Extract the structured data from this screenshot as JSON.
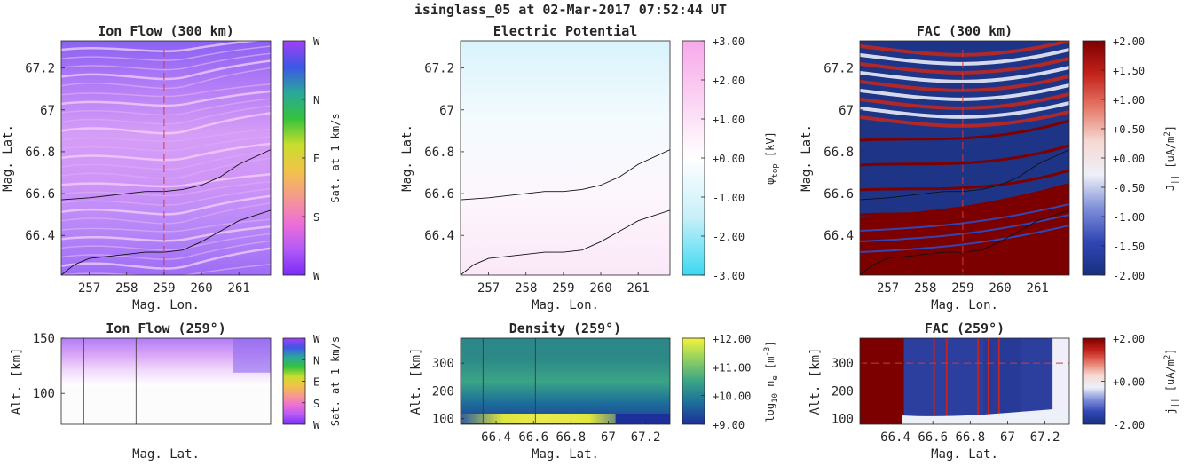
{
  "figure_title": "isinglass_05 at 02-Mar-2017 07:52:44 UT",
  "colors": {
    "axis": "#262626",
    "cut_line": "#d23a3a",
    "contour": "#111111"
  },
  "chart_data": [
    {
      "id": "ion-flow-300",
      "type": "heatmap",
      "title": "Ion Flow (300 km)",
      "xlabel": "Mag. Lon.",
      "ylabel": "Mag. Lat.",
      "xlim": [
        256.25,
        261.85
      ],
      "ylim": [
        66.21,
        67.33
      ],
      "xticks": [
        257,
        258,
        259,
        260,
        261
      ],
      "yticks": [
        66.4,
        66.6,
        66.8,
        67,
        67.2
      ],
      "ytick_labels": [
        "66.4",
        "66.6",
        "66.8",
        "67",
        "67.2"
      ],
      "cut_longitude": 259,
      "contours": [
        {
          "x": [
            256.25,
            257,
            258,
            258.5,
            259,
            259.5,
            260,
            260.5,
            261,
            261.85
          ],
          "y": [
            66.57,
            66.58,
            66.6,
            66.61,
            66.61,
            66.62,
            66.64,
            66.68,
            66.74,
            66.81
          ]
        },
        {
          "x": [
            256.25,
            256.6,
            257,
            257.5,
            258,
            258.5,
            259,
            259.5,
            260,
            260.5,
            261,
            261.85
          ],
          "y": [
            66.21,
            66.26,
            66.29,
            66.3,
            66.31,
            66.32,
            66.32,
            66.33,
            66.37,
            66.42,
            66.47,
            66.52
          ]
        }
      ],
      "colorbar": {
        "label": "Sat. at 1 km/s",
        "ticks": [
          "W",
          "N",
          "E",
          "S",
          "W"
        ],
        "stops": [
          "#a23ff7",
          "#3d57e6",
          "#2aa89a",
          "#35c23d",
          "#c8de2e",
          "#f2c24a",
          "#f59a8e",
          "#ee6fd6",
          "#b35af7",
          "#7a2cf5"
        ]
      }
    },
    {
      "id": "electric-potential",
      "type": "heatmap",
      "title": "Electric Potential",
      "xlabel": "Mag. Lon.",
      "ylabel": "Mag. Lat.",
      "xlim": [
        256.25,
        261.85
      ],
      "ylim": [
        66.21,
        67.33
      ],
      "xticks": [
        257,
        258,
        259,
        260,
        261
      ],
      "yticks": [
        66.4,
        66.6,
        66.8,
        67,
        67.2
      ],
      "ytick_labels": [
        "66.4",
        "66.6",
        "66.8",
        "67",
        "67.2"
      ],
      "contours": [
        {
          "x": [
            256.25,
            257,
            258,
            258.5,
            259,
            259.5,
            260,
            260.5,
            261,
            261.85
          ],
          "y": [
            66.57,
            66.58,
            66.6,
            66.61,
            66.61,
            66.62,
            66.64,
            66.68,
            66.74,
            66.81
          ]
        },
        {
          "x": [
            256.25,
            256.6,
            257,
            257.5,
            258,
            258.5,
            259,
            259.5,
            260,
            260.5,
            261,
            261.85
          ],
          "y": [
            66.21,
            66.26,
            66.29,
            66.3,
            66.31,
            66.32,
            66.32,
            66.33,
            66.37,
            66.42,
            66.47,
            66.52
          ]
        }
      ],
      "colorbar": {
        "label": "φ_top [kV]",
        "label_main": "φ",
        "label_sub": "top",
        "label_unit": " [kV]",
        "ticks": [
          "+3.00",
          "+2.00",
          "+1.00",
          "+0.00",
          "-1.00",
          "-2.00",
          "-3.00"
        ],
        "stops": [
          "#f7a8ea",
          "#fbd3f3",
          "#ffffff",
          "#c9f0f8",
          "#3cd8f0"
        ]
      }
    },
    {
      "id": "fac-300",
      "type": "heatmap",
      "title": "FAC (300 km)",
      "xlabel": "Mag. Lon.",
      "ylabel": "Mag. Lat.",
      "xlim": [
        256.25,
        261.85
      ],
      "ylim": [
        66.21,
        67.33
      ],
      "xticks": [
        257,
        258,
        259,
        260,
        261
      ],
      "yticks": [
        66.4,
        66.6,
        66.8,
        67,
        67.2
      ],
      "ytick_labels": [
        "66.4",
        "66.6",
        "66.8",
        "67",
        "67.2"
      ],
      "cut_longitude": 259,
      "contours": [
        {
          "x": [
            256.25,
            257,
            258,
            258.5,
            259,
            259.5,
            260,
            260.5,
            261,
            261.85
          ],
          "y": [
            66.57,
            66.58,
            66.6,
            66.61,
            66.61,
            66.62,
            66.64,
            66.68,
            66.74,
            66.81
          ]
        },
        {
          "x": [
            256.25,
            256.6,
            257,
            257.5,
            258,
            258.5,
            259,
            259.5,
            260,
            260.5,
            261,
            261.85
          ],
          "y": [
            66.21,
            66.26,
            66.29,
            66.3,
            66.31,
            66.32,
            66.32,
            66.33,
            66.37,
            66.42,
            66.47,
            66.52
          ]
        }
      ],
      "colorbar": {
        "label": "J_|| [uA/m²]",
        "label_main": "J",
        "label_sub": "||",
        "label_unit": " [uA/m",
        "label_sup": "2",
        "label_end": "]",
        "ticks": [
          "+2.00",
          "+1.50",
          "+1.00",
          "+0.50",
          "+0.00",
          "-0.50",
          "-1.00",
          "-1.50",
          "-2.00"
        ],
        "stops": [
          "#7d0000",
          "#c4221a",
          "#e67a6a",
          "#f6d8d2",
          "#eef0f8",
          "#7f8fd9",
          "#3146b4",
          "#18307f"
        ]
      }
    },
    {
      "id": "ion-flow-259",
      "type": "heatmap",
      "title": "Ion Flow (259°)",
      "xlabel": "Mag. Lat.",
      "ylabel": "Alt. [km]",
      "xlim": [
        66.21,
        67.33
      ],
      "ylim": [
        72,
        150
      ],
      "xticks": [],
      "xtick_labels": [],
      "yticks": [
        100,
        150
      ],
      "ytick_labels": [
        "100",
        "150"
      ],
      "vlines": [
        66.33,
        66.61
      ],
      "colorbar": {
        "label": "Sat. at 1 km/s",
        "ticks": [
          "W",
          "N",
          "E",
          "S",
          "W"
        ],
        "stops": [
          "#a23ff7",
          "#3d57e6",
          "#2aa89a",
          "#35c23d",
          "#c8de2e",
          "#f2c24a",
          "#f59a8e",
          "#ee6fd6",
          "#b35af7",
          "#7a2cf5"
        ]
      }
    },
    {
      "id": "density-259",
      "type": "heatmap",
      "title": "Density (259°)",
      "xlabel": "Mag. Lat.",
      "ylabel": "Alt. [km]",
      "xlim": [
        66.21,
        67.33
      ],
      "ylim": [
        80,
        390
      ],
      "xticks": [
        66.4,
        66.6,
        66.8,
        67,
        67.2
      ],
      "xtick_labels": [
        "66.4",
        "66.6",
        "66.8",
        "67",
        "67.2"
      ],
      "yticks": [
        100,
        200,
        300
      ],
      "ytick_labels": [
        "100",
        "200",
        "300"
      ],
      "vlines": [
        66.33,
        66.61
      ],
      "colorbar": {
        "label": "log10 ne [m^-3]",
        "label_main": "log",
        "label_sub": "10",
        "label_mid": " n",
        "label_sub2": "e",
        "label_unit": " [m",
        "label_sup": "-3",
        "label_end": "]",
        "ticks": [
          "+12.00",
          "+11.00",
          "+10.00",
          "+9.00"
        ],
        "stops": [
          "#f3f23c",
          "#8fcf63",
          "#3aa486",
          "#1d6e9b",
          "#1d2f98"
        ]
      }
    },
    {
      "id": "fac-259",
      "type": "heatmap",
      "title": "FAC (259°)",
      "xlabel": "Mag. Lat.",
      "ylabel": "Alt. [km]",
      "xlim": [
        66.21,
        67.33
      ],
      "ylim": [
        80,
        390
      ],
      "xticks": [
        66.4,
        66.6,
        66.8,
        67,
        67.2
      ],
      "xtick_labels": [
        "66.4",
        "66.6",
        "66.8",
        "67",
        "67.2"
      ],
      "yticks": [
        100,
        200,
        300
      ],
      "ytick_labels": [
        "100",
        "200",
        "300"
      ],
      "cut_altitude": 300,
      "colorbar": {
        "label": "j_|| [uA/m²]",
        "label_main": "j",
        "label_sub": "||",
        "label_unit": " [uA/m",
        "label_sup": "2",
        "label_end": "]",
        "ticks": [
          "+2.00",
          "+0.00",
          "-2.00"
        ],
        "stops": [
          "#7d0000",
          "#c4221a",
          "#e67a6a",
          "#f6d8d2",
          "#eef0f8",
          "#7f8fd9",
          "#3146b4",
          "#18307f"
        ]
      }
    }
  ]
}
